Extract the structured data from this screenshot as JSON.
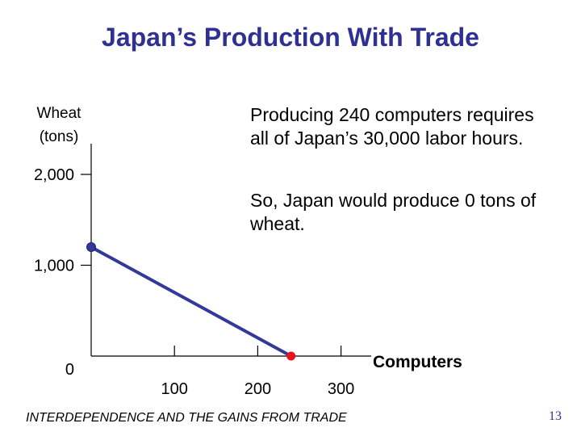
{
  "slide": {
    "title": "Japan’s Production With Trade",
    "footer": "INTERDEPENDENCE AND THE GAINS FROM TRADE",
    "page_number": "13",
    "title_color": "#2e3192"
  },
  "notes": {
    "line1": "Producing 240 computers requires all of Japan’s 30,000 labor hours.",
    "line2": "So, Japan would produce 0 tons of wheat."
  },
  "chart_data": {
    "type": "line",
    "title": "",
    "ylabel_lines": [
      "Wheat",
      "(tons)"
    ],
    "xlabel": "Computers",
    "xlim": [
      0,
      340
    ],
    "ylim": [
      0,
      2200
    ],
    "x_ticks": [
      {
        "value": 100,
        "label": "100"
      },
      {
        "value": 200,
        "label": "200"
      },
      {
        "value": 300,
        "label": "300"
      }
    ],
    "y_ticks": [
      {
        "value": 0,
        "label": "0"
      },
      {
        "value": 1000,
        "label": "1,000"
      },
      {
        "value": 2000,
        "label": "2,000"
      }
    ],
    "series": [
      {
        "color": "#33399a",
        "points": [
          {
            "x": 0,
            "y": 1200
          },
          {
            "x": 240,
            "y": 0
          }
        ]
      }
    ],
    "highlight_point": {
      "x": 240,
      "y": 0,
      "color": "#e8141b"
    },
    "endpoint_marker_color": "#33399a",
    "grid": false,
    "legend": "none"
  }
}
